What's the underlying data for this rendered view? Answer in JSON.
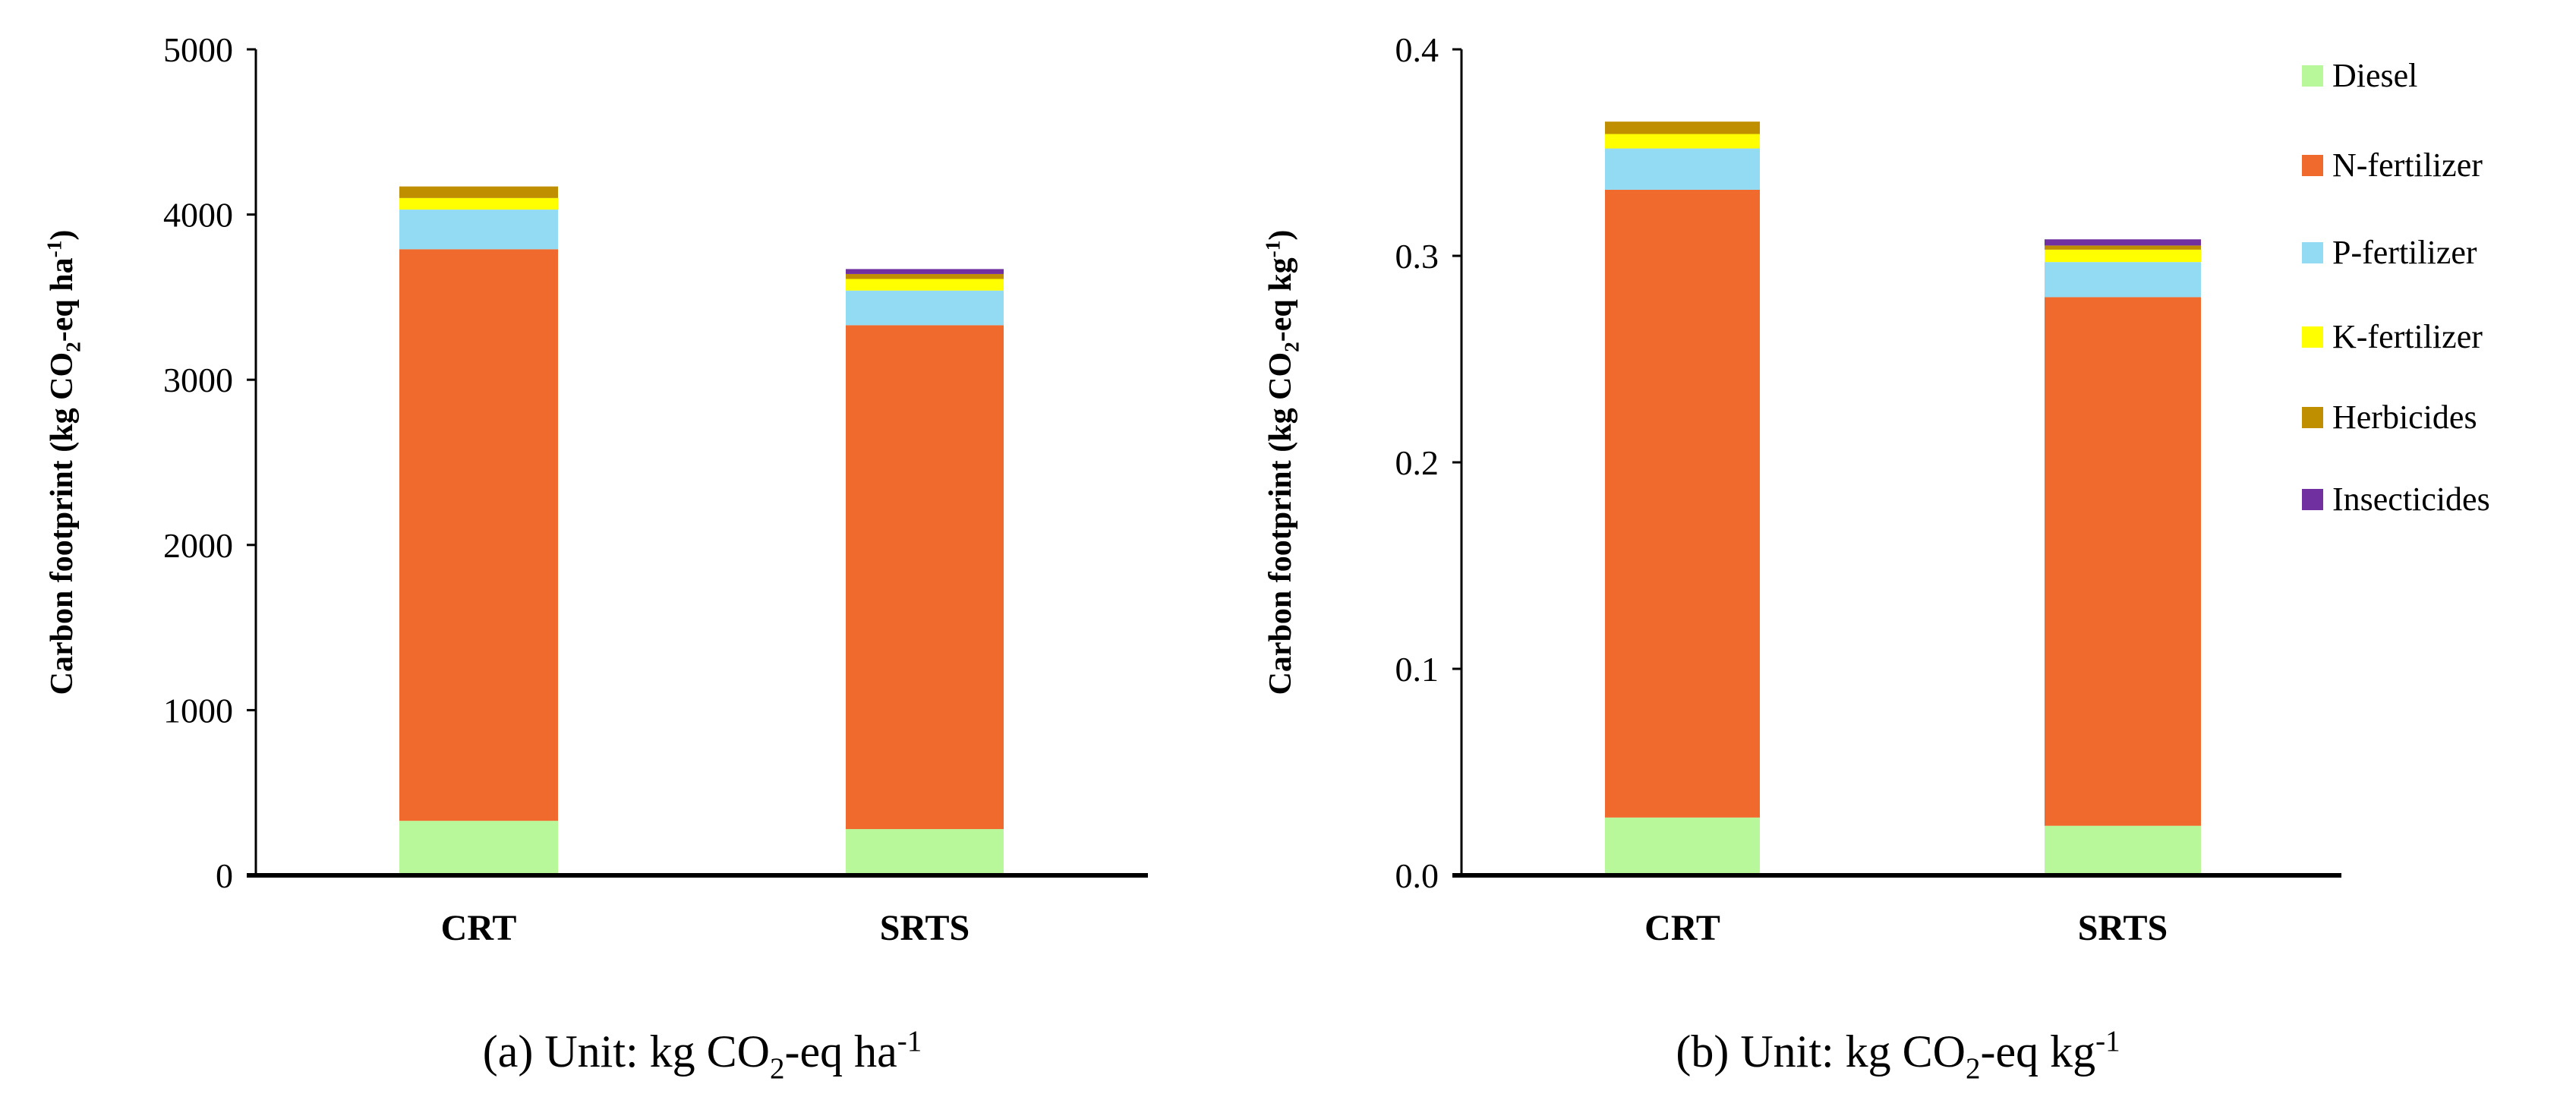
{
  "chart_data": [
    {
      "type": "bar",
      "stacked": true,
      "categories": [
        "CRT",
        "SRTS"
      ],
      "ylabel": "Carbon footprint (kg CO2-eq ha-1)",
      "ylabel_parts": {
        "pre": "Carbon footprint  (kg CO",
        "sub": "2",
        "mid": "-eq ha",
        "sup": "-1",
        "post": ")"
      },
      "ylim": [
        0,
        5000
      ],
      "yticks": [
        0,
        1000,
        2000,
        3000,
        4000,
        5000
      ],
      "ytick_labels": [
        "0",
        "1000",
        "2000",
        "3000",
        "4000",
        "5000"
      ],
      "grid": false,
      "caption": {
        "pre": "(a) Unit: kg CO",
        "sub": "2",
        "mid": "-eq ha",
        "sup": "-1"
      },
      "series": [
        {
          "name": "Diesel",
          "values": [
            330,
            280
          ]
        },
        {
          "name": "N-fertilizer",
          "values": [
            3460,
            3050
          ]
        },
        {
          "name": "P-fertilizer",
          "values": [
            240,
            210
          ]
        },
        {
          "name": "K-fertilizer",
          "values": [
            70,
            70
          ]
        },
        {
          "name": "Herbicides",
          "values": [
            70,
            30
          ]
        },
        {
          "name": "Insecticides",
          "values": [
            0,
            30
          ]
        }
      ]
    },
    {
      "type": "bar",
      "stacked": true,
      "categories": [
        "CRT",
        "SRTS"
      ],
      "ylabel": "Carbon footprint (kg CO2-eq kg-1)",
      "ylabel_parts": {
        "pre": "Carbon footprint  (kg CO",
        "sub": "2",
        "mid": "-eq kg",
        "sup": "-1",
        "post": ")"
      },
      "ylim": [
        0,
        0.4
      ],
      "yticks": [
        0,
        0.1,
        0.2,
        0.3,
        0.4
      ],
      "ytick_labels": [
        "0.0",
        "0.1",
        "0.2",
        "0.3",
        "0.4"
      ],
      "grid": false,
      "legend_position": "right",
      "caption": {
        "pre": "(b) Unit: kg CO",
        "sub": "2",
        "mid": "-eq kg",
        "sup": "-1"
      },
      "series": [
        {
          "name": "Diesel",
          "values": [
            0.028,
            0.024
          ]
        },
        {
          "name": "N-fertilizer",
          "values": [
            0.304,
            0.256
          ]
        },
        {
          "name": "P-fertilizer",
          "values": [
            0.02,
            0.017
          ]
        },
        {
          "name": "K-fertilizer",
          "values": [
            0.007,
            0.006
          ]
        },
        {
          "name": "Herbicides",
          "values": [
            0.006,
            0.002
          ]
        },
        {
          "name": "Insecticides",
          "values": [
            0.0,
            0.003
          ]
        }
      ]
    }
  ],
  "legend": [
    "Diesel",
    "N-fertilizer",
    "P-fertilizer",
    "K-fertilizer",
    "Herbicides",
    "Insecticides"
  ],
  "colors": {
    "Diesel": "#b9f89a",
    "N-fertilizer": "#f0692d",
    "P-fertilizer": "#93dbf2",
    "K-fertilizer": "#ffff00",
    "Herbicides": "#bf8f00",
    "Insecticides": "#7030a0"
  }
}
